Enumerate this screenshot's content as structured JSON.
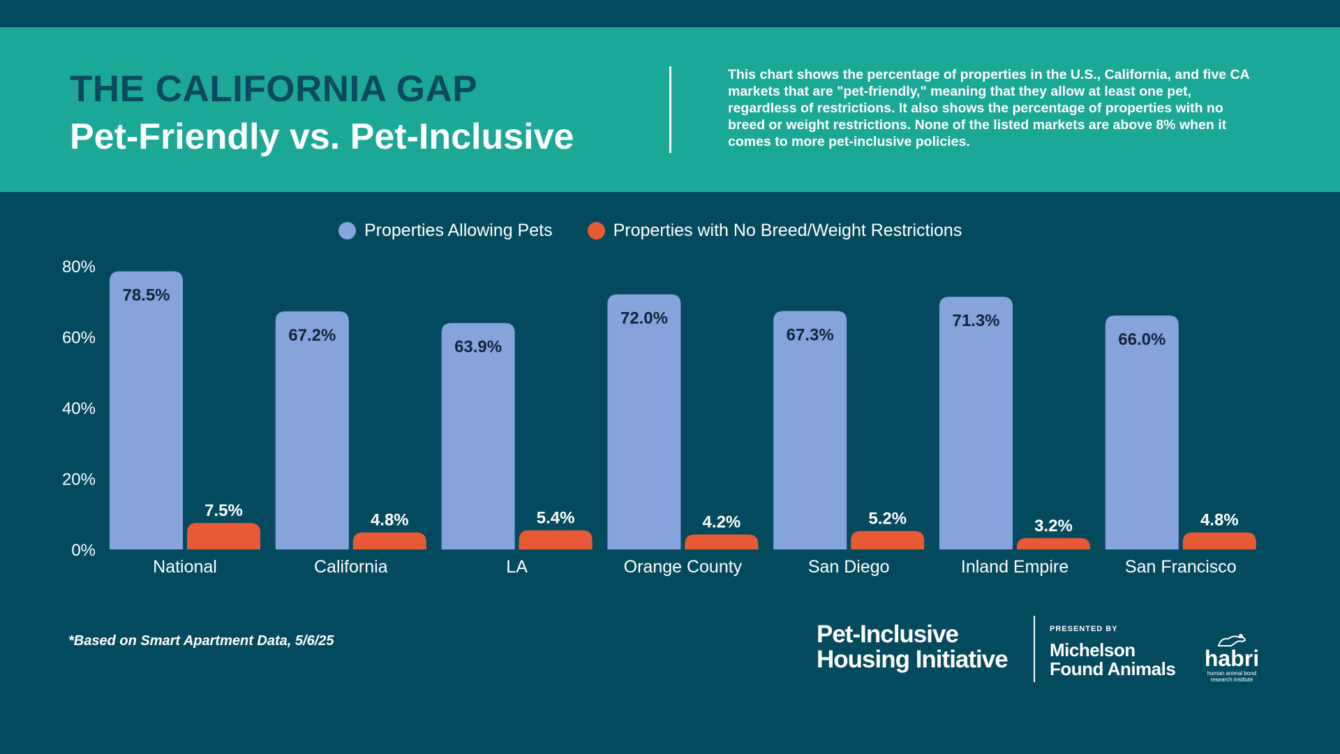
{
  "header": {
    "title": "THE CALIFORNIA GAP",
    "subtitle": "Pet-Friendly vs. Pet-Inclusive",
    "description": "This chart shows the percentage of properties in the U.S., California, and five CA markets that are \"pet-friendly,\" meaning that they allow at least one pet, regardless of restrictions. It also shows the percentage of properties with no breed or weight restrictions. None of the listed markets are above 8% when it comes to more pet-inclusive policies."
  },
  "legend": [
    {
      "label": "Properties Allowing Pets",
      "color": "#86a3dc"
    },
    {
      "label": "Properties with No Breed/Weight Restrictions",
      "color": "#e85a35"
    }
  ],
  "chart_data": {
    "type": "bar",
    "categories": [
      "National",
      "California",
      "LA",
      "Orange County",
      "San Diego",
      "Inland Empire",
      "San Francisco"
    ],
    "series": [
      {
        "name": "Properties Allowing Pets",
        "values": [
          78.5,
          67.2,
          63.9,
          72.0,
          67.3,
          71.3,
          66.0
        ],
        "labels": [
          "78.5%",
          "67.2%",
          "63.9%",
          "72.0%",
          "67.3%",
          "71.3%",
          "66.0%"
        ],
        "color": "#86a3dc"
      },
      {
        "name": "Properties with No Breed/Weight Restrictions",
        "values": [
          7.5,
          4.8,
          5.4,
          4.2,
          5.2,
          3.2,
          4.8
        ],
        "labels": [
          "7.5%",
          "4.8%",
          "5.4%",
          "4.2%",
          "5.2%",
          "3.2%",
          "4.8%"
        ],
        "color": "#e85a35"
      }
    ],
    "yticks": [
      "0%",
      "20%",
      "40%",
      "60%",
      "80%"
    ],
    "ylim": [
      0,
      80
    ],
    "grid": false,
    "legend_position": "top-center"
  },
  "footnote": "*Based on Smart Apartment Data, 5/6/25",
  "logos": {
    "pihi_line1": "Pet-Inclusive",
    "pihi_line2": "Housing Initiative",
    "presented_by": "PRESENTED BY",
    "mfa_line1": "Michelson",
    "mfa_line2": "Found Animals",
    "habri_name": "habri",
    "habri_tagline": "human animal bond research institute"
  }
}
